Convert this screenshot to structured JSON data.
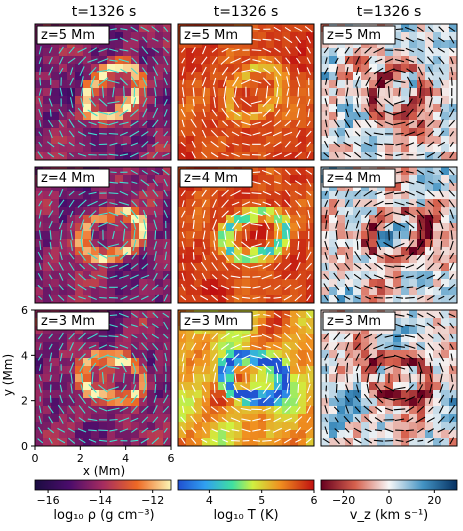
{
  "figure": {
    "column_titles": [
      "t=1326 s",
      "t=1326 s",
      "t=1326 s"
    ],
    "row_labels": [
      "z=5 Mm",
      "z=4 Mm",
      "z=3 Mm"
    ]
  },
  "chart_data": {
    "type": "heatmap",
    "panels": [
      {
        "quantity": "density",
        "colormap": "magma",
        "arrow_color": "#40e0d0"
      },
      {
        "quantity": "temperature",
        "colormap": "jet",
        "arrow_color": "#ffffff"
      },
      {
        "quantity": "vertical_velocity",
        "colormap": "RdBu",
        "arrow_color": "#000000"
      }
    ],
    "xlabel": "x (Mm)",
    "ylabel": "y (Mm)",
    "xlim": [
      0,
      6
    ],
    "ylim": [
      0,
      6
    ],
    "xticks": [
      "0",
      "2",
      "4",
      "6"
    ],
    "yticks": [
      "0",
      "2",
      "4",
      "6"
    ],
    "colorbars": [
      {
        "label": "log₁₀ ρ (g cm⁻³)",
        "range": [
          -16.5,
          -11.3
        ],
        "ticks": [
          "−16",
          "−14",
          "−12"
        ],
        "tick_values": [
          -16,
          -14,
          -12
        ]
      },
      {
        "label": "log₁₀ T (K)",
        "range": [
          3.4,
          6.0
        ],
        "ticks": [
          "4",
          "5",
          "6"
        ],
        "tick_values": [
          4,
          5,
          6
        ]
      },
      {
        "label": "v_z (km s⁻¹)",
        "range": [
          -30,
          30
        ],
        "ticks": [
          "−20",
          "0",
          "20"
        ],
        "tick_values": [
          -20,
          0,
          20
        ]
      }
    ]
  }
}
